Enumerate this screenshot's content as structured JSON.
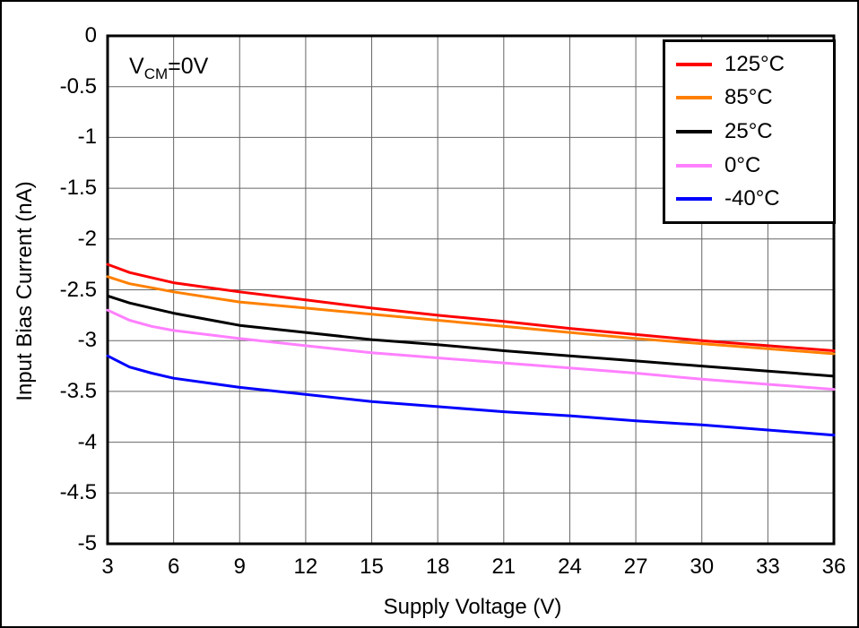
{
  "annotation": {
    "pre": "V",
    "sub": "CM",
    "post": "=0V"
  },
  "chart_data": {
    "type": "line",
    "title": "",
    "xlabel": "Supply Voltage (V)",
    "ylabel": "Input Bias Current (nA)",
    "xlim": [
      3,
      36
    ],
    "ylim": [
      -5,
      0
    ],
    "xticks": [
      3,
      6,
      9,
      12,
      15,
      18,
      21,
      24,
      27,
      30,
      33,
      36
    ],
    "yticks": [
      0,
      -0.5,
      -1,
      -1.5,
      -2,
      -2.5,
      -3,
      -3.5,
      -4,
      -4.5,
      -5
    ],
    "grid": true,
    "legend_position": "top-right",
    "grid_color": "#666666",
    "axis_color": "#000000",
    "x": [
      3,
      4,
      5,
      6,
      9,
      12,
      15,
      18,
      21,
      24,
      27,
      30,
      33,
      36
    ],
    "series": [
      {
        "name": "125°C",
        "color": "#ff0000",
        "values": [
          -2.25,
          -2.33,
          -2.38,
          -2.43,
          -2.52,
          -2.6,
          -2.68,
          -2.75,
          -2.81,
          -2.88,
          -2.94,
          -3.0,
          -3.05,
          -3.1
        ]
      },
      {
        "name": "85°C",
        "color": "#ff8000",
        "values": [
          -2.37,
          -2.44,
          -2.48,
          -2.52,
          -2.62,
          -2.68,
          -2.74,
          -2.8,
          -2.86,
          -2.92,
          -2.98,
          -3.03,
          -3.08,
          -3.13
        ]
      },
      {
        "name": "25°C",
        "color": "#000000",
        "values": [
          -2.56,
          -2.63,
          -2.68,
          -2.73,
          -2.85,
          -2.92,
          -2.99,
          -3.04,
          -3.1,
          -3.15,
          -3.2,
          -3.25,
          -3.3,
          -3.35
        ]
      },
      {
        "name": "0°C",
        "color": "#ff80ff",
        "values": [
          -2.7,
          -2.8,
          -2.86,
          -2.9,
          -2.98,
          -3.05,
          -3.12,
          -3.17,
          -3.22,
          -3.27,
          -3.32,
          -3.38,
          -3.43,
          -3.48
        ]
      },
      {
        "name": "-40°C",
        "color": "#0000ff",
        "values": [
          -3.15,
          -3.26,
          -3.32,
          -3.37,
          -3.46,
          -3.53,
          -3.6,
          -3.65,
          -3.7,
          -3.74,
          -3.79,
          -3.83,
          -3.88,
          -3.93
        ]
      }
    ]
  }
}
